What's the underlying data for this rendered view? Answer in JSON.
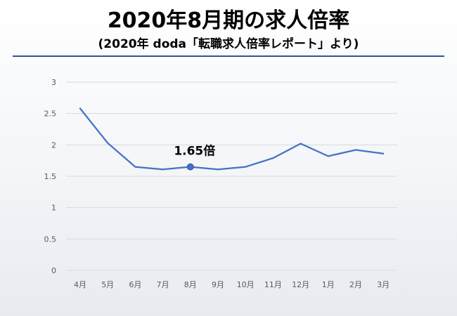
{
  "title": "2020年8月期の求人倍率",
  "subtitle": "(2020年 doda「転職求人倍率レポート」より)",
  "colors": {
    "line": "#4472c4",
    "marker": "#4472c4",
    "rule": "#2f5597",
    "grid": "#d9d9d9"
  },
  "chart_data": {
    "type": "line",
    "categories": [
      "4月",
      "5月",
      "6月",
      "7月",
      "8月",
      "9月",
      "10月",
      "11月",
      "12月",
      "1月",
      "2月",
      "3月"
    ],
    "values": [
      2.58,
      2.03,
      1.65,
      1.61,
      1.65,
      1.61,
      1.65,
      1.79,
      2.02,
      1.82,
      1.92,
      1.86
    ],
    "ylim": [
      0,
      3
    ],
    "yticks": [
      "0",
      "0.5",
      "1",
      "1.5",
      "2",
      "2.5",
      "3"
    ],
    "grid": true,
    "annotation": {
      "text": "1.65倍",
      "category": "8月",
      "value": 1.65
    }
  }
}
